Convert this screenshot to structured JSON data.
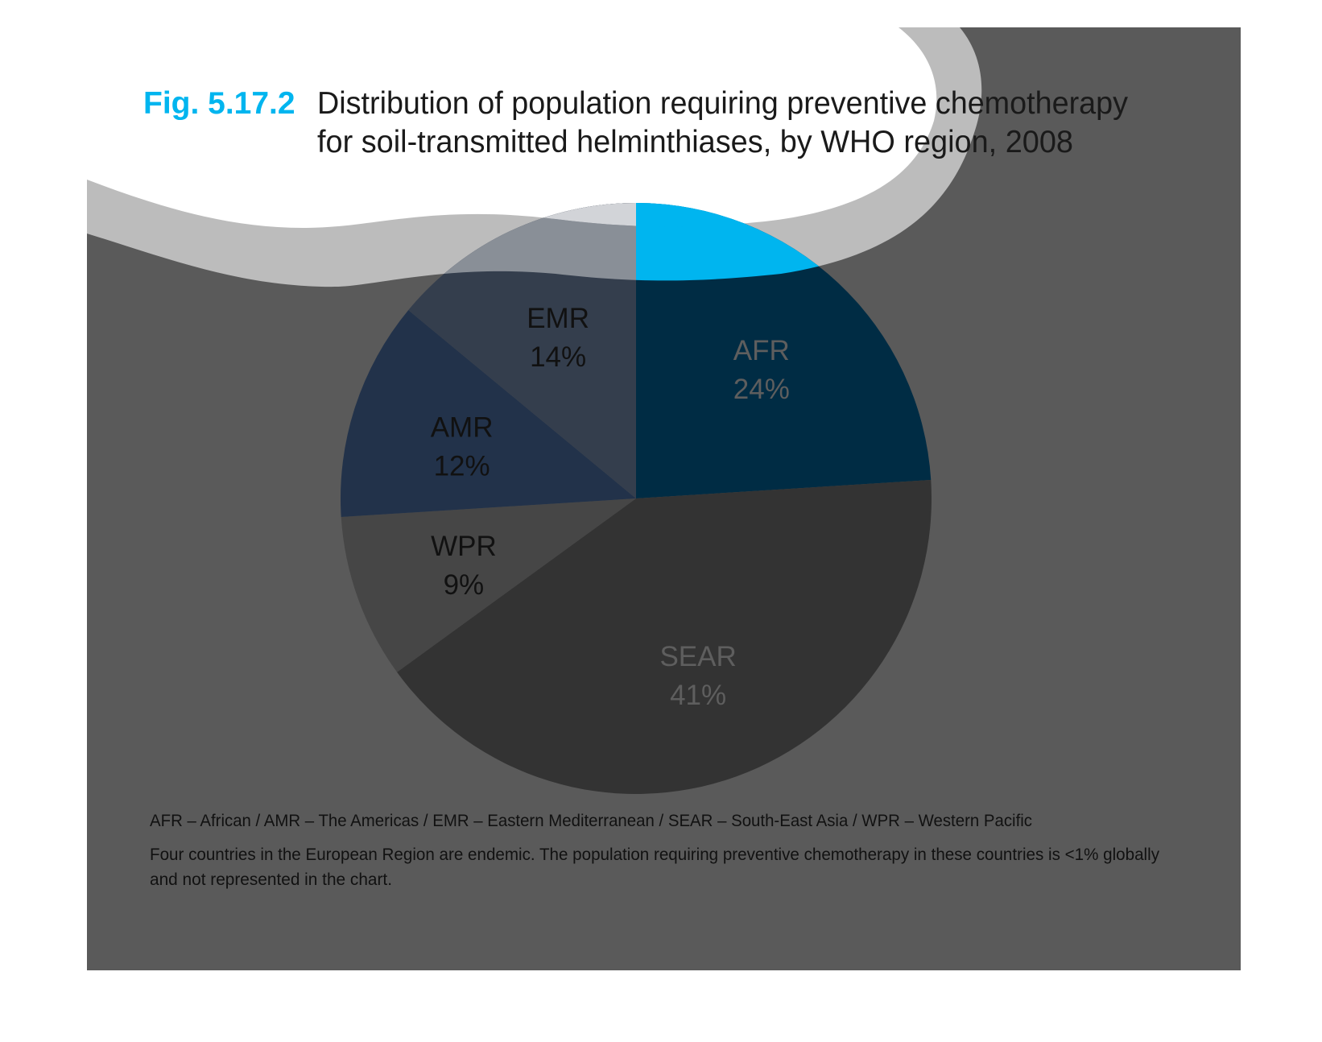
{
  "figure": {
    "label": "Fig. 5.17.2",
    "title_line1": "Distribution of population requiring preventive chemotherapy",
    "title_line2": "for soil-transmitted helminthiases, by WHO region, 2008"
  },
  "chart_data": {
    "type": "pie",
    "title": "Distribution of population requiring preventive chemotherapy for soil-transmitted helminthiases, by WHO region, 2008",
    "unit": "%",
    "slices": [
      {
        "label": "AFR",
        "value": 24,
        "value_label": "24%",
        "color": "#00b5ef"
      },
      {
        "label": "SEAR",
        "value": 41,
        "value_label": "41%",
        "color": "#333333"
      },
      {
        "label": "WPR",
        "value": 9,
        "value_label": "9%",
        "color": "#464646"
      },
      {
        "label": "AMR",
        "value": 12,
        "value_label": "12%",
        "color": "#22324a"
      },
      {
        "label": "EMR",
        "value": 14,
        "value_label": "14%",
        "color": "#343e4d"
      }
    ],
    "start_angle_deg": 0,
    "direction": "clockwise"
  },
  "notes": {
    "legend": "AFR – African / AMR – The Americas / EMR – Eastern Mediterranean / SEAR – South-East Asia / WPR – Western Pacific",
    "line1": "Four countries in the European Region are endemic. The population requiring preventive chemotherapy in these countries is <1% globally",
    "line2": "and not represented in the chart."
  },
  "colors": {
    "panel": "#5a5a5a",
    "band": "#bcbcbc",
    "accent": "#00b5ef",
    "title_text": "#1a1a1a"
  }
}
